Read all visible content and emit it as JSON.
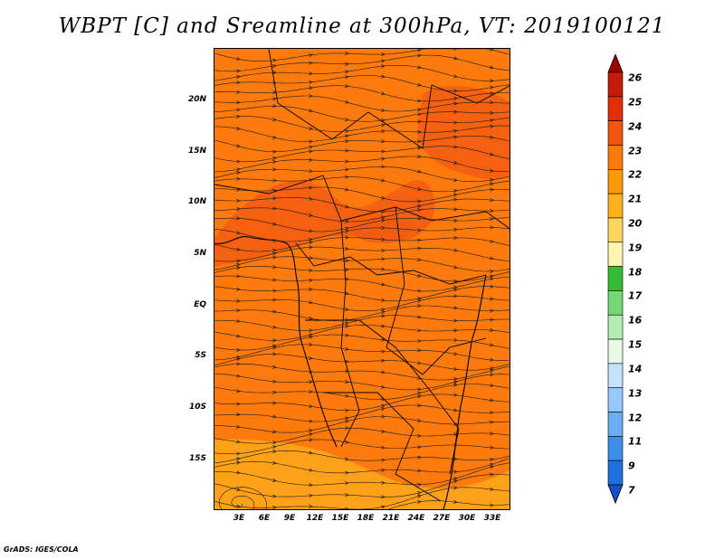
{
  "title": "WBPT [C] and Sreamline at 300hPa, VT: 2019100121",
  "footer": "GrADS: IGES/COLA",
  "map": {
    "lat_labels": [
      "20N",
      "15N",
      "10N",
      "5N",
      "EQ",
      "5S",
      "10S",
      "15S"
    ],
    "lon_labels": [
      "3E",
      "6E",
      "9E",
      "12E",
      "15E",
      "18E",
      "21E",
      "24E",
      "27E",
      "30E",
      "33E"
    ],
    "base_color": "#ff7a0d",
    "warm_color": "#f25a12",
    "cool_color": "#ffa21a"
  },
  "colorbar": {
    "labels": [
      "26",
      "25",
      "24",
      "23",
      "22",
      "21",
      "20",
      "19",
      "18",
      "17",
      "16",
      "15",
      "14",
      "13",
      "12",
      "11",
      "9",
      "7"
    ],
    "colors": [
      "#9e0000",
      "#c41a08",
      "#e0300a",
      "#f25412",
      "#ff7a0d",
      "#ff9a0a",
      "#ffb31f",
      "#ffd55e",
      "#fff5b2",
      "#35bb35",
      "#75d875",
      "#b4edb4",
      "#e6fae6",
      "#c6e2ff",
      "#97c8ff",
      "#6aacf5",
      "#3d8ee8",
      "#1f6fdd",
      "#1450c8"
    ]
  }
}
